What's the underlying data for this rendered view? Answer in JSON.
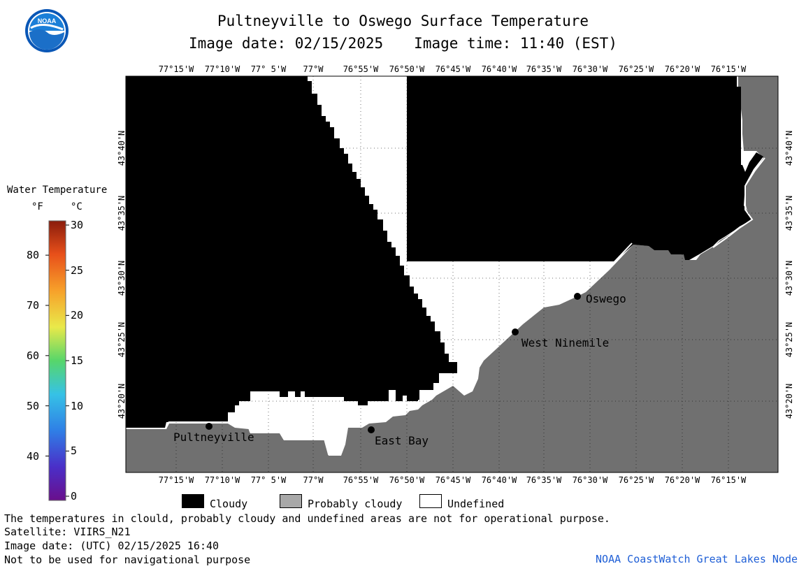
{
  "header": {
    "title": "Pultneyville to Oswego Surface Temperature",
    "image_date_label": "Image date: 02/15/2025",
    "image_time_label": "Image time: 11:40 (EST)"
  },
  "logo": {
    "text": "NOAA"
  },
  "colorbar": {
    "title": "Water Temperature",
    "unit_f": "°F",
    "unit_c": "°C",
    "f_ticks": [
      {
        "label": "80",
        "value": 80
      },
      {
        "label": "70",
        "value": 70
      },
      {
        "label": "60",
        "value": 60
      },
      {
        "label": "50",
        "value": 50
      },
      {
        "label": "40",
        "value": 40
      }
    ],
    "c_ticks": [
      {
        "label": "30",
        "value": 30
      },
      {
        "label": "25",
        "value": 25
      },
      {
        "label": "20",
        "value": 20
      },
      {
        "label": "15",
        "value": 15
      },
      {
        "label": "10",
        "value": 10
      },
      {
        "label": "5",
        "value": 5
      },
      {
        "label": "0",
        "value": 0
      }
    ],
    "c_range": [
      0,
      30
    ]
  },
  "map": {
    "lon_labels": [
      "77°15'W",
      "77°10'W",
      "77° 5'W",
      "77°W",
      "76°55'W",
      "76°50'W",
      "76°45'W",
      "76°40'W",
      "76°35'W",
      "76°30'W",
      "76°25'W",
      "76°20'W",
      "76°15'W"
    ],
    "lat_labels": [
      "43°40'N",
      "43°35'N",
      "43°30'N",
      "43°25'N",
      "43°20'N"
    ],
    "colors": {
      "cloudy": "#000000",
      "probably_cloudy": "#707070",
      "land": "#707070",
      "undefined": "#ffffff"
    },
    "places": [
      {
        "name": "Pultneyville"
      },
      {
        "name": "East Bay"
      },
      {
        "name": "West Ninemile"
      },
      {
        "name": "Oswego"
      }
    ]
  },
  "legend": {
    "cloudy": "Cloudy",
    "probably_cloudy": "Probably cloudy",
    "undefined": "Undefined"
  },
  "footer": {
    "note": "The temperatures in clould, probably cloudy and undefined areas are not for operational purpose.",
    "satellite": "Satellite: VIIRS_N21",
    "image_date_utc": "Image date: (UTC) 02/15/2025  16:40",
    "nav_warning": "Not to be used for navigational purpose",
    "credit": "NOAA CoastWatch Great Lakes Node"
  }
}
